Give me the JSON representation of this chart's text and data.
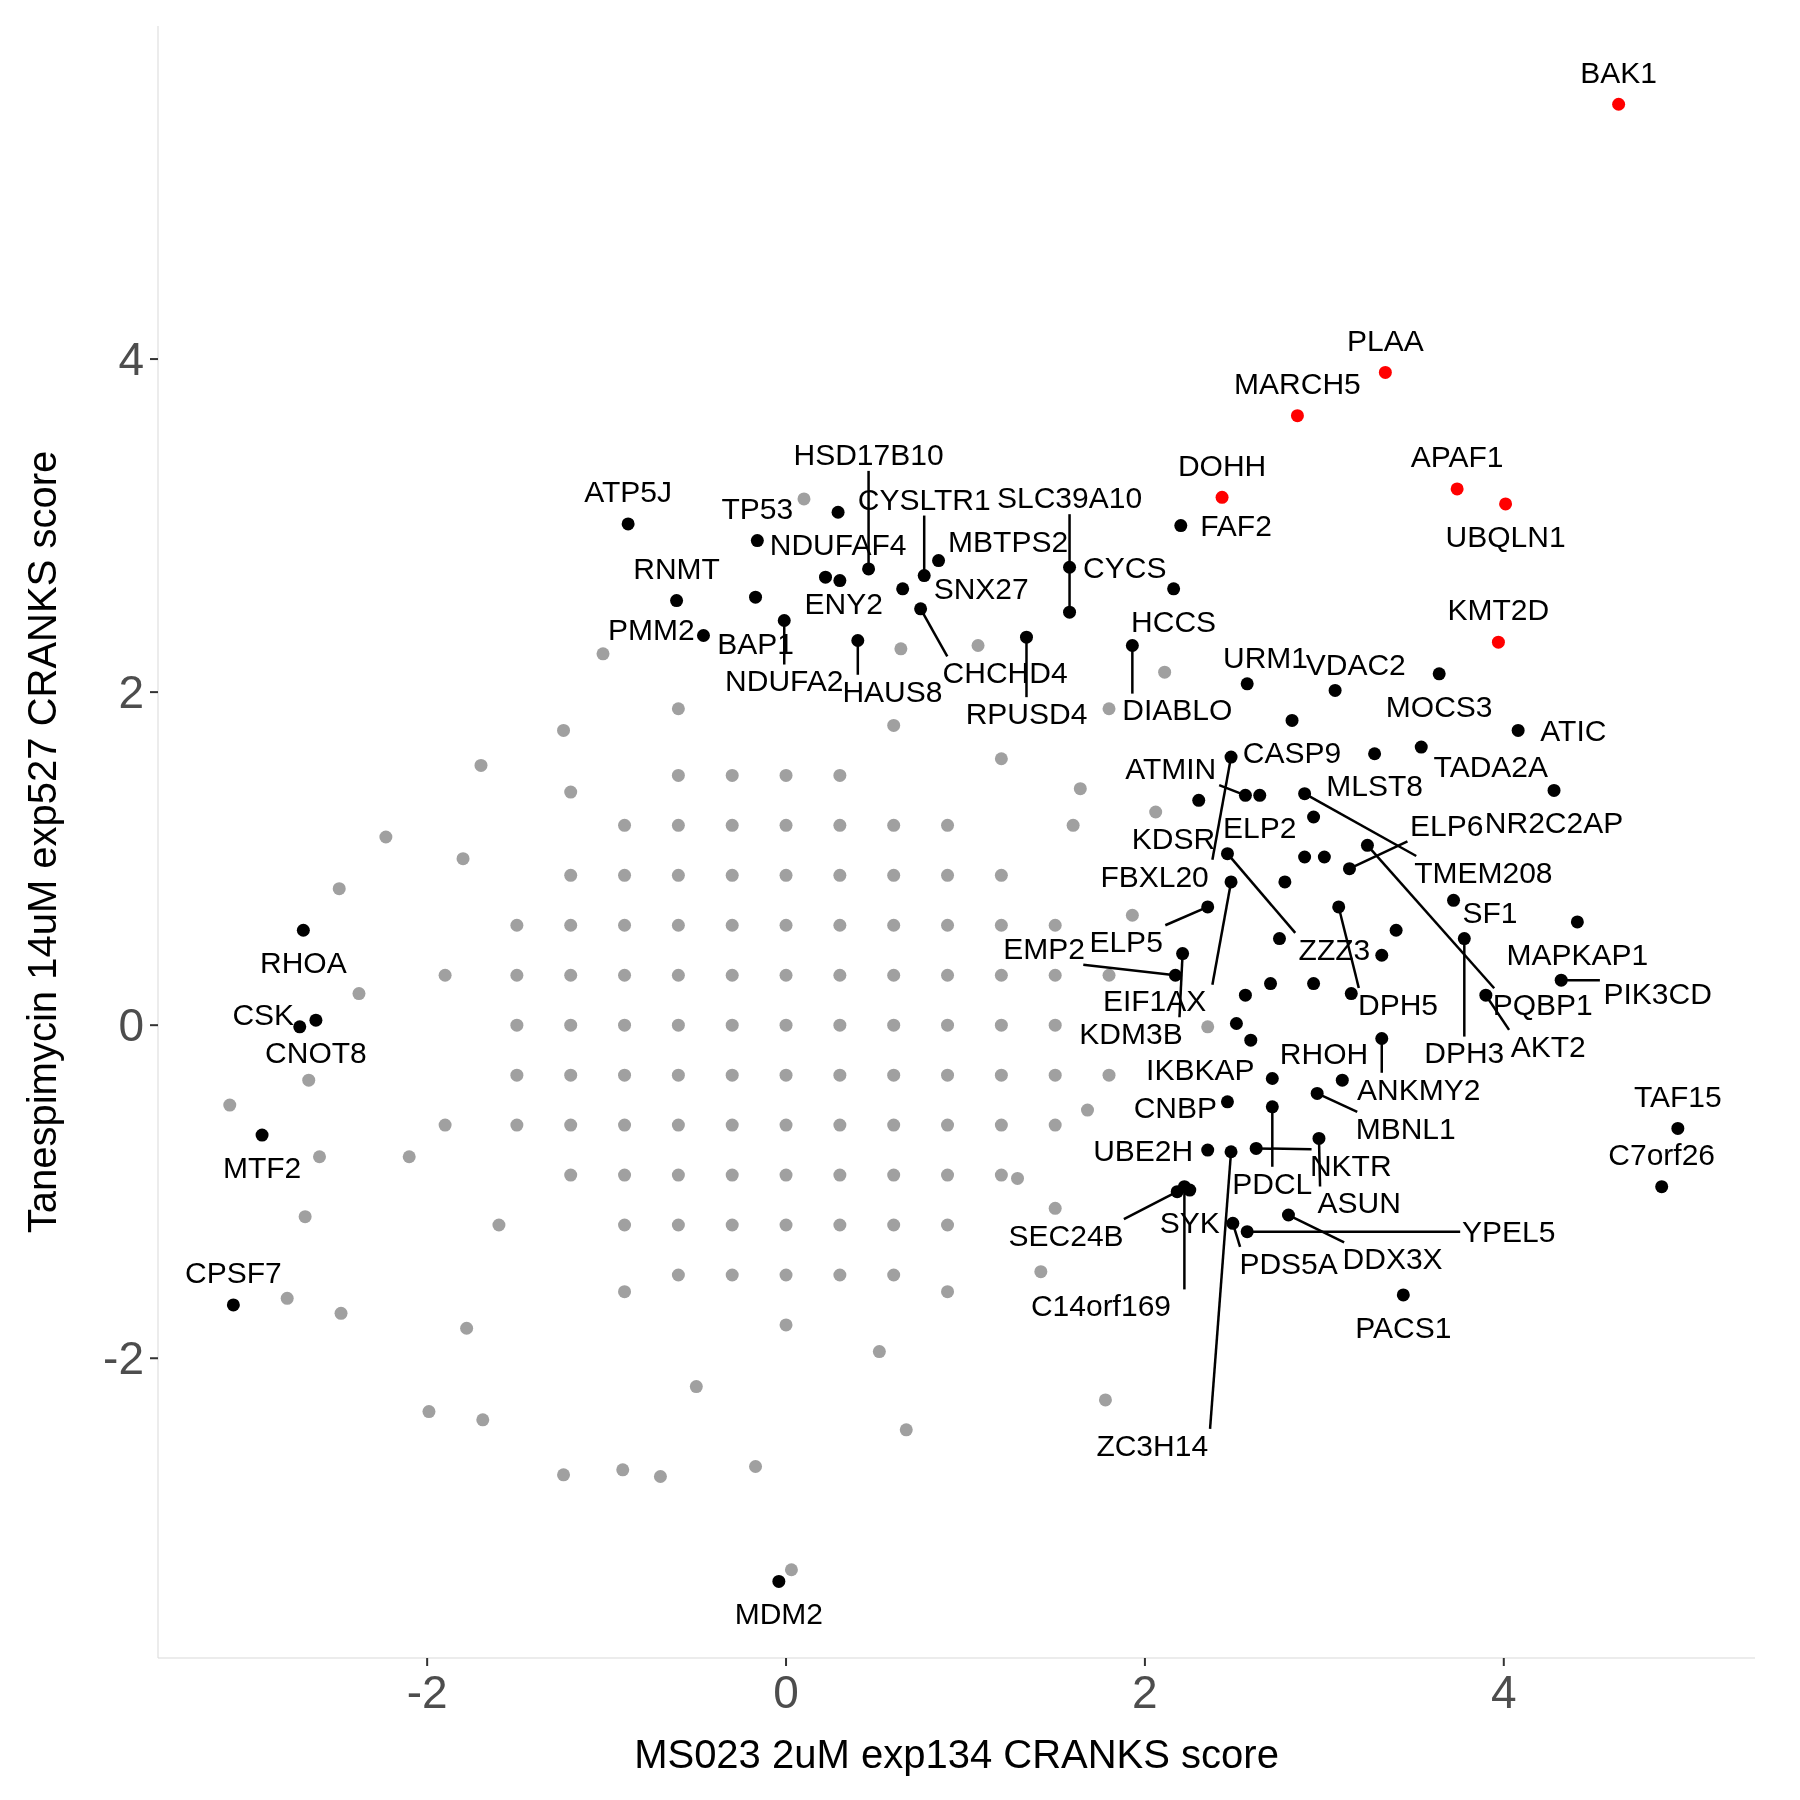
{
  "chart_data": {
    "type": "scatter",
    "xlabel": "MS023 2uM exp134 CRANKS score",
    "ylabel": "Tanespimycin 14uM exp527 CRANKS score",
    "xlim": [
      -3.5,
      5.4
    ],
    "ylim": [
      -3.8,
      6.0
    ],
    "xticks": [
      -2,
      0,
      2,
      4
    ],
    "yticks": [
      -2,
      0,
      2,
      4
    ],
    "series": [
      {
        "color": "#a0a0a0",
        "x": [
          -0.6,
          -0.3,
          0,
          0.3,
          -0.9,
          -0.6,
          -0.3,
          0,
          0.3,
          0.6,
          0.9,
          -1.2,
          -0.9,
          -0.6,
          -0.3,
          0,
          0.3,
          0.6,
          0.9,
          1.2,
          -1.5,
          -1.2,
          -0.9,
          -0.6,
          -0.3,
          0,
          0.3,
          0.6,
          0.9,
          1.2,
          1.5,
          -1.5,
          -1.2,
          -0.9,
          -0.6,
          -0.3,
          0,
          0.3,
          0.6,
          0.9,
          1.2,
          1.5,
          -1.5,
          -1.2,
          -0.9,
          -0.6,
          -0.3,
          0,
          0.3,
          0.6,
          0.9,
          1.2,
          1.5,
          -1.5,
          -1.2,
          -0.9,
          -0.6,
          -0.3,
          0,
          0.3,
          0.6,
          0.9,
          1.2,
          1.5,
          -1.5,
          -1.2,
          -0.9,
          -0.6,
          -0.3,
          0,
          0.3,
          0.6,
          0.9,
          1.2,
          1.5,
          -1.2,
          -0.9,
          -0.6,
          -0.3,
          0,
          0.3,
          0.6,
          0.9,
          1.2,
          -0.9,
          -0.6,
          -0.3,
          0,
          0.3,
          0.6,
          0.9,
          -0.6,
          -0.3,
          0,
          0.3,
          0.6,
          -2.49,
          -2.23,
          -1.7,
          -1.24,
          -1.02,
          0.1,
          0.64,
          1.07,
          2.11,
          1.8,
          2.35,
          1.93,
          1.68,
          1.42,
          1.78,
          0.67,
          -0.17,
          -0.7,
          -0.91,
          -1.24,
          -1.99,
          -1.69,
          -2.48,
          -2.78,
          -2.68,
          -3.1,
          -2.66,
          -2.6,
          -2.38,
          0.03,
          0.52,
          -0.5,
          -1.78,
          -2.1,
          1.29,
          2.06,
          1.64,
          -1.9,
          -1.9,
          -1.8,
          -1.6,
          1.8,
          1.8,
          1.6,
          1.5,
          0.6,
          -0.6,
          0,
          -0.9,
          0.9,
          1.2,
          -1.2
        ],
        "values": [
          1.5,
          1.5,
          1.5,
          1.5,
          1.2,
          1.2,
          1.2,
          1.2,
          1.2,
          1.2,
          1.2,
          0.9,
          0.9,
          0.9,
          0.9,
          0.9,
          0.9,
          0.9,
          0.9,
          0.9,
          0.6,
          0.6,
          0.6,
          0.6,
          0.6,
          0.6,
          0.6,
          0.6,
          0.6,
          0.6,
          0.6,
          0.3,
          0.3,
          0.3,
          0.3,
          0.3,
          0.3,
          0.3,
          0.3,
          0.3,
          0.3,
          0.3,
          0,
          0,
          0,
          0,
          0,
          0,
          0,
          0,
          0,
          0,
          0,
          -0.3,
          -0.3,
          -0.3,
          -0.3,
          -0.3,
          -0.3,
          -0.3,
          -0.3,
          -0.3,
          -0.3,
          -0.3,
          -0.6,
          -0.6,
          -0.6,
          -0.6,
          -0.6,
          -0.6,
          -0.6,
          -0.6,
          -0.6,
          -0.6,
          -0.6,
          -0.9,
          -0.9,
          -0.9,
          -0.9,
          -0.9,
          -0.9,
          -0.9,
          -0.9,
          -0.9,
          -1.2,
          -1.2,
          -1.2,
          -1.2,
          -1.2,
          -1.2,
          -1.2,
          -1.5,
          -1.5,
          -1.5,
          -1.5,
          -1.5,
          0.82,
          1.13,
          1.56,
          1.77,
          2.23,
          3.16,
          2.26,
          2.28,
          2.12,
          1.9,
          -0.01,
          0.66,
          -0.51,
          -1.48,
          -2.25,
          -2.43,
          -2.65,
          -2.71,
          -2.67,
          -2.7,
          -2.32,
          -2.37,
          -1.73,
          -1.64,
          -1.15,
          -0.48,
          -0.33,
          -0.79,
          0.19,
          -3.27,
          -1.96,
          -2.17,
          -1.82,
          -0.79,
          -0.92,
          1.28,
          1.42,
          0.3,
          -0.6,
          1.0,
          -1.2,
          0.3,
          -0.3,
          1.2,
          -1.1,
          1.8,
          1.9,
          -1.8,
          -1.6,
          -1.6,
          1.6,
          1.4
        ]
      },
      {
        "color": "#000000",
        "x": [
          -0.88,
          -0.16,
          0.29,
          0.85,
          0.77,
          0.22,
          0.3,
          -0.17,
          -0.61,
          -0.46,
          -0.01,
          0.4,
          0.65,
          0.75,
          0.46,
          1.58,
          2.16,
          2.2,
          1.93,
          1.34,
          1.58,
          2.57,
          2.82,
          3.64,
          3.06,
          3.28,
          3.54,
          4.08,
          4.28,
          2.64,
          2.56,
          2.48,
          2.3,
          2.89,
          2.46,
          2.48,
          3.24,
          3.14,
          3.72,
          4.41,
          2.35,
          3.08,
          3.78,
          4.32,
          2.21,
          2.17,
          3.9,
          3.32,
          2.59,
          2.46,
          3.1,
          2.96,
          2.71,
          2.35,
          2.62,
          2.97,
          2.25,
          2.48,
          2.18,
          2.49,
          2.22,
          2.8,
          2.57,
          3.44,
          4.97,
          4.88,
          -2.69,
          -2.62,
          -2.71,
          -2.92,
          -3.08,
          -0.04,
          2.94,
          2.78,
          2.89,
          3.0,
          2.75,
          2.94,
          3.15,
          3.32,
          3.4,
          2.7,
          2.56,
          2.51,
          2.71
        ],
        "values": [
          3.01,
          2.91,
          3.08,
          2.79,
          2.7,
          2.69,
          2.67,
          2.57,
          2.55,
          2.34,
          2.43,
          2.31,
          2.62,
          2.5,
          2.74,
          2.75,
          2.62,
          3.0,
          2.28,
          2.33,
          2.48,
          2.05,
          1.83,
          2.11,
          2.01,
          1.63,
          1.67,
          1.77,
          1.41,
          1.38,
          1.38,
          1.61,
          1.35,
          1.39,
          1.03,
          0.86,
          1.08,
          0.94,
          0.75,
          0.62,
          0.71,
          0.71,
          0.52,
          0.27,
          0.43,
          0.3,
          0.18,
          -0.08,
          -0.09,
          -0.46,
          -0.33,
          -0.41,
          -0.49,
          -0.75,
          -0.74,
          -0.68,
          -0.99,
          -0.76,
          -1.0,
          -1.19,
          -0.97,
          -1.14,
          -1.24,
          -1.62,
          -0.62,
          -0.97,
          0.57,
          0.03,
          -0.01,
          -0.66,
          -1.68,
          -3.34,
          1.25,
          0.86,
          1.01,
          1.01,
          0.52,
          0.25,
          0.19,
          0.42,
          0.57,
          0.25,
          0.18,
          0.01,
          -0.32
        ]
      },
      {
        "color": "#ff0000",
        "x": [
          4.64,
          3.34,
          2.85,
          2.43,
          3.74,
          4.01,
          3.97
        ],
        "values": [
          5.53,
          3.92,
          3.66,
          3.17,
          3.22,
          3.13,
          2.3
        ]
      }
    ],
    "annotations": [
      {
        "text": "BAK1",
        "x": 4.64,
        "y": 5.53
      },
      {
        "text": "PLAA",
        "x": 3.34,
        "y": 3.92
      },
      {
        "text": "MARCH5",
        "x": 2.85,
        "y": 3.66
      },
      {
        "text": "DOHH",
        "x": 2.43,
        "y": 3.17
      },
      {
        "text": "APAF1",
        "x": 3.74,
        "y": 3.22
      },
      {
        "text": "UBQLN1",
        "x": 4.01,
        "y": 3.13
      },
      {
        "text": "KMT2D",
        "x": 3.97,
        "y": 2.3
      },
      {
        "text": "ATP5J",
        "x": -0.88,
        "y": 3.01
      },
      {
        "text": "TP53",
        "x": -0.16,
        "y": 2.91
      },
      {
        "text": "NDUFAF4",
        "x": 0.29,
        "y": 3.08
      },
      {
        "text": "MBTPS2",
        "x": 0.85,
        "y": 2.79
      },
      {
        "text": "CYSLTR1",
        "x": 0.77,
        "y": 2.7
      },
      {
        "text": "ENY2",
        "x": 0.22,
        "y": 2.69
      },
      {
        "text": "BAP1",
        "x": -0.17,
        "y": 2.57
      },
      {
        "text": "RNMT",
        "x": -0.61,
        "y": 2.55
      },
      {
        "text": "PMM2",
        "x": -0.46,
        "y": 2.34
      },
      {
        "text": "NDUFA2",
        "x": -0.01,
        "y": 2.43
      },
      {
        "text": "HAUS8",
        "x": 0.4,
        "y": 2.31
      },
      {
        "text": "SNX27",
        "x": 0.65,
        "y": 2.62
      },
      {
        "text": "CHCHD4",
        "x": 0.75,
        "y": 2.5
      },
      {
        "text": "HSD17B10",
        "x": 0.46,
        "y": 2.74
      },
      {
        "text": "CYCS",
        "x": 1.58,
        "y": 2.75
      },
      {
        "text": "HCCS",
        "x": 2.16,
        "y": 2.62
      },
      {
        "text": "FAF2",
        "x": 2.2,
        "y": 3.0
      },
      {
        "text": "DIABLO",
        "x": 1.93,
        "y": 2.28
      },
      {
        "text": "RPUSD4",
        "x": 1.34,
        "y": 2.33
      },
      {
        "text": "SLC39A10",
        "x": 1.58,
        "y": 2.48
      },
      {
        "text": "URM1",
        "x": 2.57,
        "y": 2.05
      },
      {
        "text": "CASP9",
        "x": 2.82,
        "y": 1.83
      },
      {
        "text": "MOCS3",
        "x": 3.64,
        "y": 2.11
      },
      {
        "text": "VDAC2",
        "x": 3.06,
        "y": 2.01
      },
      {
        "text": "MLST8",
        "x": 3.28,
        "y": 1.63
      },
      {
        "text": "TADA2A",
        "x": 3.54,
        "y": 1.67
      },
      {
        "text": "ATIC",
        "x": 4.08,
        "y": 1.77
      },
      {
        "text": "NR2C2AP",
        "x": 4.28,
        "y": 1.41
      },
      {
        "text": "ELP2",
        "x": 2.64,
        "y": 1.38
      },
      {
        "text": "ATMIN",
        "x": 2.56,
        "y": 1.38
      },
      {
        "text": "FBXL20",
        "x": 2.48,
        "y": 1.61
      },
      {
        "text": "KDSR",
        "x": 2.3,
        "y": 1.35
      },
      {
        "text": "TMEM208",
        "x": 2.89,
        "y": 1.39
      },
      {
        "text": "ZZZ3",
        "x": 2.46,
        "y": 1.03
      },
      {
        "text": "EIF1AX",
        "x": 2.48,
        "y": 0.86
      },
      {
        "text": "PQBP1",
        "x": 3.24,
        "y": 1.08
      },
      {
        "text": "ELP6",
        "x": 3.14,
        "y": 0.94
      },
      {
        "text": "SF1",
        "x": 3.72,
        "y": 0.75
      },
      {
        "text": "MAPKAP1",
        "x": 4.41,
        "y": 0.62
      },
      {
        "text": "ELP5",
        "x": 2.35,
        "y": 0.71
      },
      {
        "text": "DPH5",
        "x": 3.08,
        "y": 0.71
      },
      {
        "text": "DPH3",
        "x": 3.78,
        "y": 0.52
      },
      {
        "text": "PIK3CD",
        "x": 4.32,
        "y": 0.27
      },
      {
        "text": "KDM3B",
        "x": 2.21,
        "y": 0.43
      },
      {
        "text": "EMP2",
        "x": 2.17,
        "y": 0.3
      },
      {
        "text": "AKT2",
        "x": 3.9,
        "y": 0.18
      },
      {
        "text": "ANKMY2",
        "x": 3.32,
        "y": -0.08
      },
      {
        "text": "IKBKAP",
        "x": 2.59,
        "y": -0.09
      },
      {
        "text": "CNBP",
        "x": 2.46,
        "y": -0.46
      },
      {
        "text": "RHOH",
        "x": 3.1,
        "y": -0.33
      },
      {
        "text": "MBNL1",
        "x": 2.96,
        "y": -0.41
      },
      {
        "text": "PDCL",
        "x": 2.71,
        "y": -0.49
      },
      {
        "text": "UBE2H",
        "x": 2.35,
        "y": -0.75
      },
      {
        "text": "NKTR",
        "x": 2.62,
        "y": -0.74
      },
      {
        "text": "ASUN",
        "x": 2.97,
        "y": -0.68
      },
      {
        "text": "SYK",
        "x": 2.25,
        "y": -0.99
      },
      {
        "text": "ZC3H14",
        "x": 2.48,
        "y": -0.76
      },
      {
        "text": "SEC24B",
        "x": 2.18,
        "y": -1.0
      },
      {
        "text": "PDS5A",
        "x": 2.49,
        "y": -1.19
      },
      {
        "text": "C14orf169",
        "x": 2.22,
        "y": -0.97
      },
      {
        "text": "DDX3X",
        "x": 2.8,
        "y": -1.14
      },
      {
        "text": "YPEL5",
        "x": 2.57,
        "y": -1.24
      },
      {
        "text": "PACS1",
        "x": 3.44,
        "y": -1.62
      },
      {
        "text": "TAF15",
        "x": 4.97,
        "y": -0.62
      },
      {
        "text": "C7orf26",
        "x": 4.88,
        "y": -0.97
      },
      {
        "text": "RHOA",
        "x": -2.69,
        "y": 0.57
      },
      {
        "text": "CNOT8",
        "x": -2.62,
        "y": 0.03
      },
      {
        "text": "CSK",
        "x": -2.71,
        "y": -0.01
      },
      {
        "text": "MTF2",
        "x": -2.92,
        "y": -0.66
      },
      {
        "text": "CPSF7",
        "x": -3.08,
        "y": -1.68
      },
      {
        "text": "MDM2",
        "x": -0.04,
        "y": -3.34
      }
    ]
  }
}
